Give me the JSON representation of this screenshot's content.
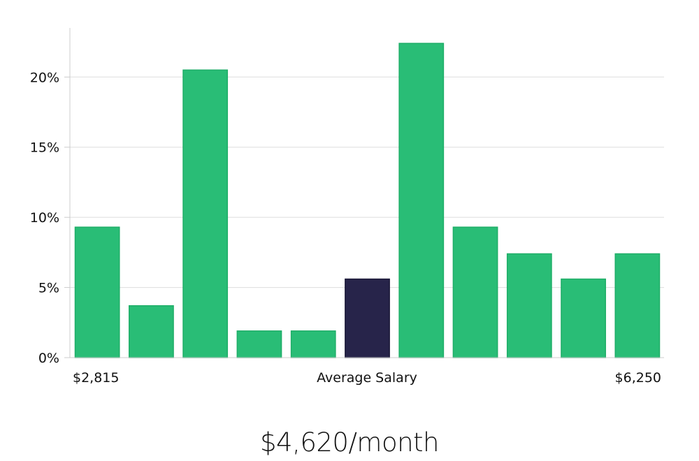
{
  "chart_data": {
    "type": "bar",
    "values": [
      9.3,
      3.7,
      20.5,
      1.9,
      1.9,
      5.6,
      22.4,
      9.3,
      7.4,
      5.6,
      7.4
    ],
    "highlight_index": 5,
    "ylim": [
      0,
      23.5
    ],
    "y_ticks": [
      0,
      5,
      10,
      15,
      20
    ],
    "y_tick_labels": [
      "0%",
      "5%",
      "10%",
      "15%",
      "20%"
    ],
    "grid": true,
    "x_labels": {
      "min": "$2,815",
      "center": "Average Salary",
      "max": "$6,250"
    }
  },
  "summary": {
    "salary": "$4,620/month"
  },
  "colors": {
    "bar": "#29bd76",
    "bar_edge": "#1fae68",
    "highlight": "#27244a",
    "grid": "#dddddd",
    "axis": "#cccccc"
  }
}
